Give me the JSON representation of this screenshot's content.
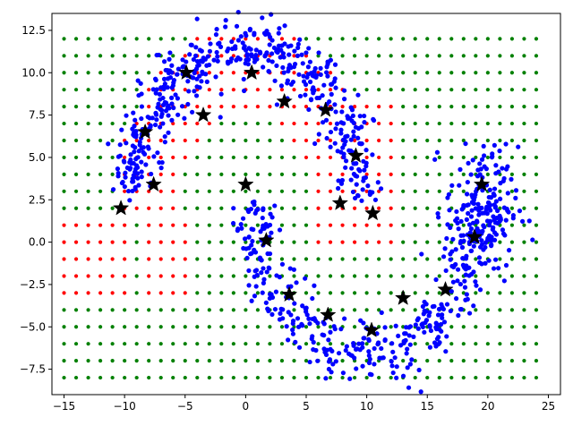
{
  "chart_data": {
    "type": "scatter",
    "title": "",
    "xlabel": "",
    "ylabel": "",
    "xlim": [
      -16.0,
      26.0
    ],
    "ylim": [
      -9.0,
      13.5
    ],
    "xticks": [
      -15,
      -10,
      -5,
      0,
      5,
      10,
      15,
      20,
      25
    ],
    "yticks": [
      -7.5,
      -5.0,
      -2.5,
      0.0,
      2.5,
      5.0,
      7.5,
      10.0,
      12.5
    ],
    "xtick_labels": [
      "−15",
      "−10",
      "−5",
      "0",
      "5",
      "10",
      "15",
      "20",
      "25"
    ],
    "ytick_labels": [
      "−7.5",
      "−5.0",
      "−2.5",
      "0.0",
      "2.5",
      "5.0",
      "7.5",
      "10.0",
      "12.5"
    ],
    "grid": false,
    "legend": "none",
    "colors": {
      "class_a": "#ff0000",
      "class_b": "#008000",
      "samples": "#0000ff",
      "centers": "#000000"
    },
    "grid_points": {
      "x_start": -15,
      "x_stop": 24,
      "x_step": 1,
      "y_start": -8,
      "y_stop": 12,
      "y_step": 1,
      "series": [
        "class_b",
        "class_a"
      ]
    },
    "samples": {
      "color": "samples",
      "arcs": [
        {
          "cx": 0,
          "cy": 2,
          "radius": 9.5,
          "theta_start_deg": 5,
          "theta_end_deg": 175,
          "spread": 1.0,
          "count": 480
        },
        {
          "cx": 10,
          "cy": 3,
          "radius": 9.5,
          "theta_start_deg": 185,
          "theta_end_deg": 355,
          "spread": 1.0,
          "count": 380
        }
      ],
      "blobs": [
        {
          "cx": 19.5,
          "cy": 2.0,
          "sx": 1.5,
          "sy": 1.8,
          "count": 160
        }
      ]
    },
    "centers": {
      "marker": "star",
      "color": "centers",
      "x": [
        -10.3,
        -7.6,
        -8.3,
        -3.5,
        -4.9,
        0.5,
        3.2,
        6.6,
        9.1,
        7.8,
        10.5,
        0.0,
        1.7,
        3.6,
        6.8,
        10.4,
        13.0,
        16.5,
        19.5,
        18.9
      ],
      "y": [
        2.0,
        3.4,
        6.5,
        7.5,
        10.0,
        10.0,
        8.3,
        7.8,
        5.1,
        2.3,
        1.7,
        3.4,
        0.1,
        -3.1,
        -4.3,
        -5.2,
        -3.3,
        -2.8,
        3.4,
        0.3
      ]
    }
  }
}
